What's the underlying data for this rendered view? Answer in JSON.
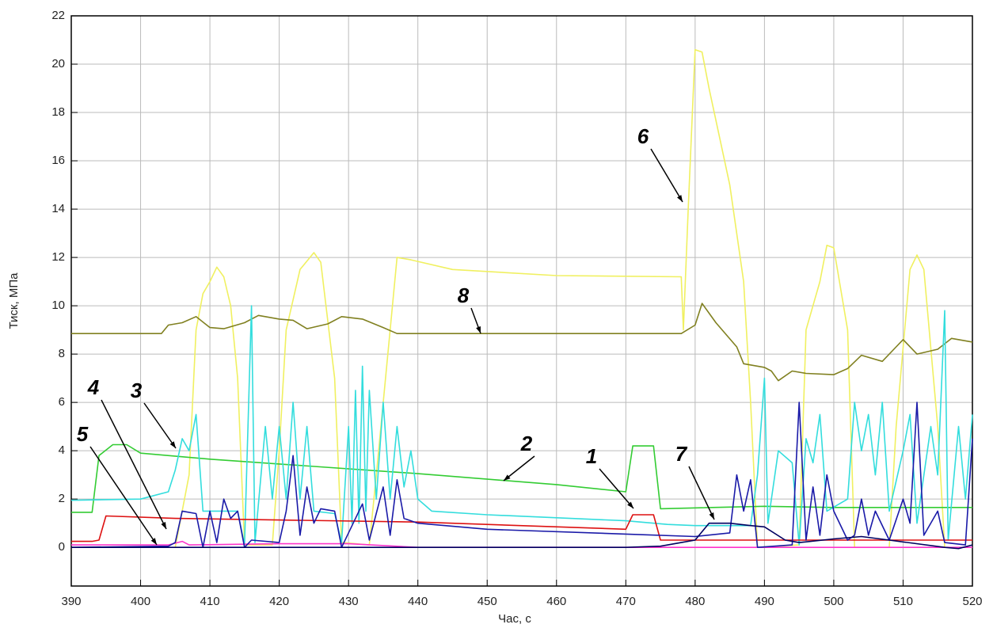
{
  "chart_data": {
    "type": "line",
    "xlabel": "Час, с",
    "ylabel": "Тиск, МПа",
    "xlim": [
      390,
      520
    ],
    "xticks": [
      390,
      400,
      410,
      420,
      430,
      440,
      450,
      460,
      470,
      480,
      490,
      500,
      510,
      520
    ],
    "ylim": [
      -1.6,
      22
    ],
    "yticks": [
      0,
      2,
      4,
      6,
      8,
      10,
      12,
      14,
      16,
      18,
      20,
      22
    ],
    "grid": true,
    "series": [
      {
        "name": "1",
        "color": "#dd1111",
        "x": [
          390,
          393,
          394,
          395,
          405,
          440,
          470,
          471,
          474,
          475,
          478,
          490,
          520
        ],
        "values": [
          0.25,
          0.25,
          0.3,
          1.3,
          1.2,
          1.05,
          0.75,
          1.35,
          1.35,
          0.3,
          0.3,
          0.3,
          0.3
        ]
      },
      {
        "name": "2",
        "color": "#33cc33",
        "x": [
          390,
          393,
          394,
          396,
          398,
          400,
          410,
          420,
          440,
          460,
          470,
          471,
          474,
          475,
          490,
          500,
          520
        ],
        "values": [
          1.45,
          1.45,
          3.8,
          4.25,
          4.25,
          3.9,
          3.65,
          3.45,
          3.05,
          2.6,
          2.3,
          4.2,
          4.2,
          1.6,
          1.7,
          1.65,
          1.65
        ]
      },
      {
        "name": "3",
        "color": "#33dddd",
        "x": [
          390,
          400,
          404,
          405,
          406,
          407,
          408,
          409,
          414,
          415,
          416,
          416.5,
          418,
          419,
          420,
          421,
          422,
          423,
          424,
          425,
          428,
          429,
          430,
          430.5,
          431,
          431.5,
          432,
          432.5,
          433,
          434,
          435,
          436,
          437,
          438,
          439,
          440,
          442,
          450,
          470,
          476,
          480,
          488,
          489,
          490,
          490.5,
          492,
          494,
          495,
          496,
          497,
          498,
          499,
          502,
          503,
          504,
          505,
          506,
          507,
          508,
          510,
          511,
          512,
          514,
          515,
          516,
          516.5,
          518,
          519,
          520
        ],
        "values": [
          1.95,
          2.0,
          2.3,
          3.2,
          4.5,
          4.0,
          5.5,
          1.5,
          1.5,
          0.1,
          10.0,
          0.2,
          5,
          2,
          5,
          2,
          6,
          2,
          5,
          1.5,
          1.4,
          0.2,
          5,
          1,
          6.5,
          1,
          7.5,
          1.5,
          6.5,
          2,
          6,
          2,
          5,
          2.5,
          4,
          2,
          1.5,
          1.35,
          1.1,
          0.95,
          0.9,
          0.9,
          3,
          7,
          1,
          4,
          3.5,
          0.1,
          4.5,
          3.5,
          5.5,
          1.5,
          2,
          6,
          4,
          5.5,
          3,
          6,
          1.5,
          4,
          5.5,
          1,
          5,
          3,
          9.8,
          0.3,
          5,
          2,
          5.5
        ]
      },
      {
        "name": "4",
        "color": "#1a1aa8",
        "x": [
          390,
          404,
          405,
          406,
          408,
          409,
          410,
          411,
          412,
          413,
          414,
          415,
          416,
          420,
          421,
          422,
          423,
          424,
          425,
          426,
          428,
          429,
          432,
          433,
          435,
          436,
          437,
          438,
          440,
          450,
          470,
          480,
          485,
          486,
          487,
          488,
          489,
          494,
          495,
          496,
          497,
          498,
          499,
          500,
          502,
          503,
          504,
          505,
          506,
          508,
          510,
          511,
          512,
          513,
          515,
          516,
          519,
          520
        ],
        "values": [
          0,
          0.05,
          0.2,
          1.5,
          1.4,
          0,
          1.5,
          0.2,
          2,
          1.2,
          1.5,
          0,
          0.3,
          0.2,
          1.5,
          3.8,
          0.5,
          2.5,
          1,
          1.6,
          1.5,
          0,
          1.8,
          0.3,
          2.5,
          0.5,
          2.8,
          1.2,
          1.0,
          0.75,
          0.55,
          0.45,
          0.6,
          3,
          1.5,
          2.8,
          0,
          0.1,
          6,
          0.3,
          2.5,
          0.5,
          3,
          1.5,
          0.3,
          0.5,
          2,
          0.5,
          1.5,
          0.3,
          2,
          1,
          6,
          0.5,
          1.5,
          0.2,
          0.1,
          4.5
        ]
      },
      {
        "name": "5",
        "color": "#ff33cc",
        "x": [
          390,
          404,
          406,
          407,
          420,
          430,
          440,
          520
        ],
        "values": [
          0.1,
          0.1,
          0.25,
          0.1,
          0.15,
          0.15,
          0,
          0
        ]
      },
      {
        "name": "6",
        "color": "#f0f060",
        "x": [
          405,
          407,
          408,
          409,
          410,
          411,
          412,
          413,
          414,
          415,
          419,
          420,
          421,
          423,
          425,
          426,
          428,
          429,
          433,
          434,
          436,
          437,
          439,
          445,
          460,
          478,
          478.3,
          479,
          480,
          481,
          482,
          485,
          487,
          488,
          489,
          495,
          496,
          498,
          499,
          500,
          502,
          503,
          508,
          509,
          511,
          512,
          513,
          515,
          516
        ],
        "values": [
          0,
          3,
          9,
          10.5,
          11,
          11.6,
          11.2,
          10,
          7,
          0.1,
          0.1,
          4,
          9,
          11.5,
          12.2,
          11.8,
          7,
          0.2,
          0.1,
          3,
          9,
          12,
          11.9,
          11.5,
          11.25,
          11.2,
          9,
          14,
          20.6,
          20.5,
          19,
          15,
          11,
          6,
          0,
          0.1,
          9,
          11,
          12.5,
          12.4,
          9,
          0,
          0,
          5,
          11.5,
          12.1,
          11.5,
          5,
          0
        ]
      },
      {
        "name": "7",
        "color": "#000060",
        "x": [
          390,
          470,
          475,
          478,
          480,
          482,
          485,
          488,
          490,
          493,
          495,
          500,
          504,
          508,
          516,
          518,
          520
        ],
        "values": [
          0,
          0,
          0.05,
          0.2,
          0.3,
          1,
          1,
          0.9,
          0.85,
          0.3,
          0.2,
          0.35,
          0.45,
          0.3,
          0,
          -0.05,
          0.1
        ]
      },
      {
        "name": "8",
        "color": "#808020",
        "x": [
          390,
          403,
          404,
          406,
          408,
          410,
          412,
          415,
          417,
          420,
          422,
          424,
          427,
          429,
          432,
          435,
          437,
          450,
          470,
          478,
          480,
          481,
          483,
          486,
          487,
          490,
          491,
          492,
          494,
          496,
          500,
          502,
          504,
          507,
          509,
          510,
          512,
          515,
          517,
          520
        ],
        "values": [
          8.85,
          8.85,
          9.2,
          9.3,
          9.55,
          9.1,
          9.05,
          9.3,
          9.6,
          9.45,
          9.4,
          9.05,
          9.25,
          9.55,
          9.45,
          9.1,
          8.85,
          8.85,
          8.85,
          8.85,
          9.2,
          10.1,
          9.3,
          8.3,
          7.6,
          7.45,
          7.3,
          6.9,
          7.3,
          7.2,
          7.15,
          7.4,
          7.95,
          7.7,
          8.3,
          8.6,
          8.0,
          8.2,
          8.65,
          8.5
        ]
      }
    ]
  }
}
